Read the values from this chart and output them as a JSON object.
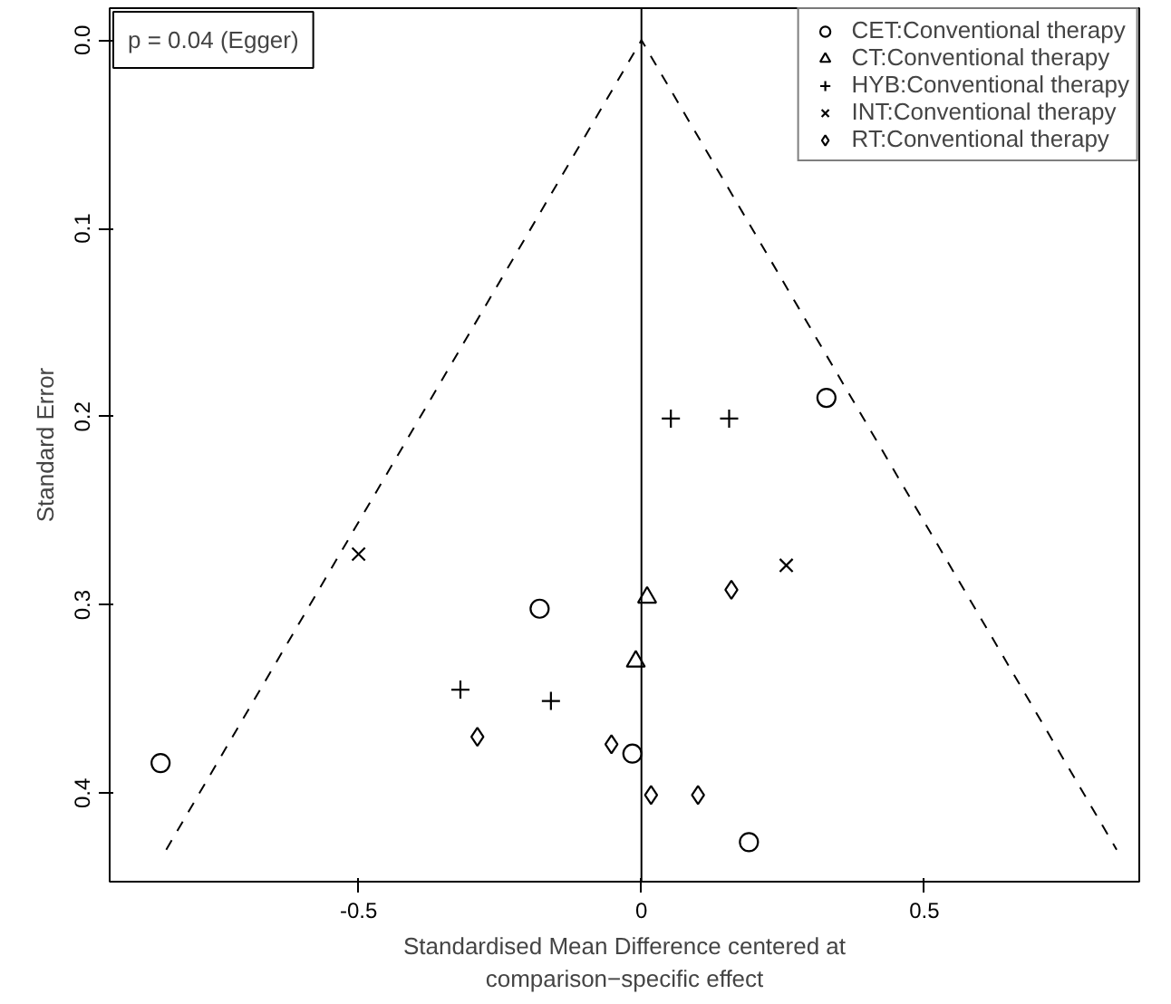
{
  "chart_data": {
    "type": "scatter",
    "xlabel": "Standardised Mean Difference centered at\ncomparison−specific effect",
    "ylabel": "Standard Error",
    "annotations": [
      "p = 0.04 (Egger)"
    ],
    "xlim": [
      -0.94,
      0.88
    ],
    "ylim": [
      0.447,
      -0.017
    ],
    "xticks": [
      -0.5,
      0,
      0.5
    ],
    "yticks": [
      {
        "value": 0,
        "label": "0.0"
      },
      0.1,
      0.2,
      0.3,
      0.4
    ],
    "grid": false,
    "legend": "top right",
    "series": [
      {
        "name": "CET:Conventional therapy",
        "color": "#000000",
        "marker": "circle",
        "x": [
          -0.85,
          -0.18,
          -0.016,
          0.327,
          0.19
        ],
        "values": [
          0.384,
          0.302,
          0.379,
          0.19,
          0.426
        ]
      },
      {
        "name": "CT:Conventional therapy",
        "color": "#000000",
        "marker": "triangle",
        "x": [
          0.01,
          -0.01
        ],
        "values": [
          0.296,
          0.33
        ]
      },
      {
        "name": "HYB:Conventional therapy",
        "color": "#000000",
        "marker": "cross",
        "x": [
          -0.32,
          -0.16,
          0.052,
          0.155
        ],
        "values": [
          0.345,
          0.351,
          0.201,
          0.201
        ]
      },
      {
        "name": "INT:Conventional therapy",
        "color": "#000000",
        "marker": "x",
        "x": [
          -0.5,
          0.256
        ],
        "values": [
          0.273,
          0.279
        ]
      },
      {
        "name": "RT:Conventional therapy",
        "color": "#000000",
        "marker": "diamond",
        "x": [
          -0.29,
          -0.053,
          0.159,
          0.017,
          0.1
        ],
        "values": [
          0.37,
          0.374,
          0.292,
          0.401,
          0.401
        ]
      },
      {
        "type": "line",
        "color": "#000000",
        "line_style": "dashed",
        "marker": "none",
        "x": [
          -0.84,
          0,
          0.84
        ],
        "values": [
          0.43,
          0,
          0.43
        ]
      }
    ],
    "ref_lines": [
      {
        "axis": "x",
        "value": 0,
        "color": "#000000",
        "line_style": "solid"
      }
    ]
  }
}
